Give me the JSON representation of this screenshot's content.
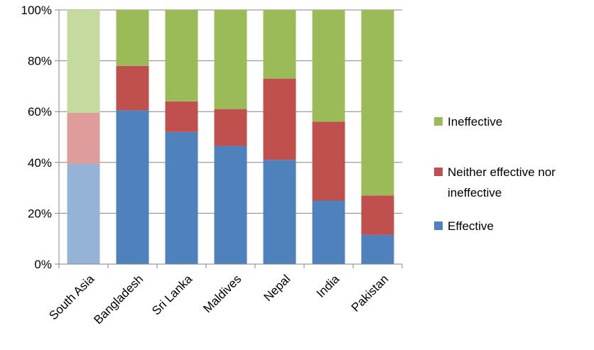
{
  "chart_data": {
    "type": "bar",
    "stacked": true,
    "percent_stacked": true,
    "categories": [
      "South Asia",
      "Bangladesh",
      "Sri Lanka",
      "Maldives",
      "Nepal",
      "India",
      "Pakistan"
    ],
    "highlighted_category": "South Asia",
    "series": [
      {
        "name": "Effective",
        "color": "#4F81BD",
        "highlight_color": "#95B3D7",
        "values": [
          39.5,
          60.5,
          52,
          46.5,
          41,
          25,
          11.5
        ]
      },
      {
        "name": "Neither effective nor ineffective",
        "color": "#C0504D",
        "highlight_color": "#E09C9A",
        "values": [
          20,
          17.5,
          12,
          14.5,
          32,
          31,
          15.5
        ]
      },
      {
        "name": "Ineffective",
        "color": "#9BBB59",
        "highlight_color": "#C5DA9F",
        "values": [
          40.5,
          22,
          36,
          39,
          27,
          44,
          73
        ]
      }
    ],
    "ylim": [
      0,
      100
    ],
    "yticks": [
      "0%",
      "20%",
      "40%",
      "60%",
      "80%",
      "100%"
    ],
    "grid": true,
    "legend_position": "right",
    "legend": [
      {
        "label": "Ineffective",
        "color": "#9BBB59"
      },
      {
        "label_lines": [
          "Neither effective nor",
          "ineffective"
        ],
        "color": "#C0504D"
      },
      {
        "label": "Effective",
        "color": "#4F81BD"
      }
    ]
  }
}
